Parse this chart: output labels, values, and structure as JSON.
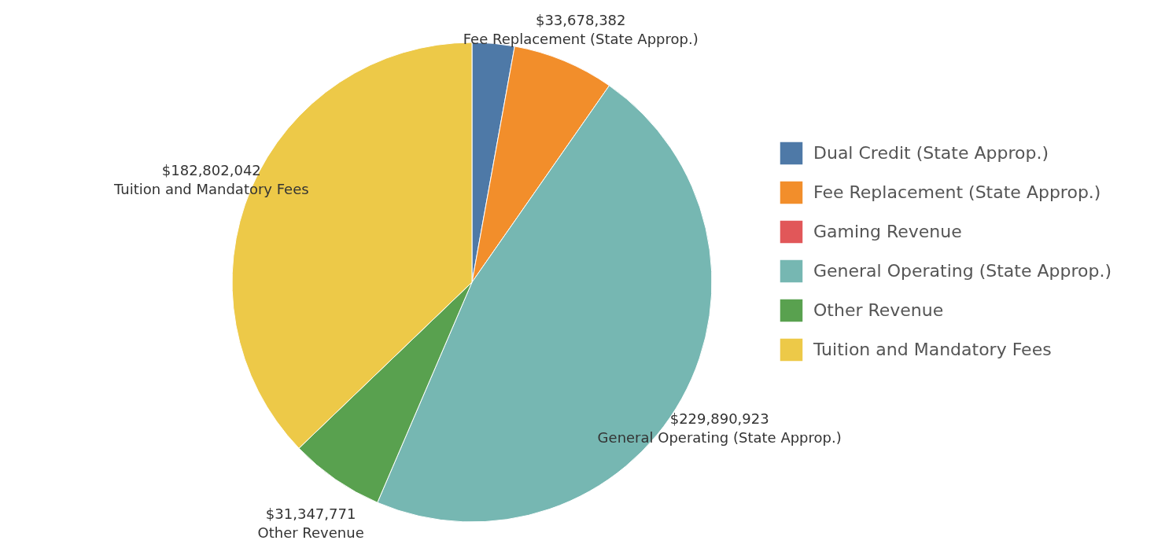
{
  "chart_data": {
    "type": "pie",
    "categories": [
      "Dual Credit (State Approp.)",
      "Fee Replacement (State Approp.)",
      "Gaming Revenue",
      "General Operating (State Approp.)",
      "Other Revenue",
      "Tuition and Mandatory Fees"
    ],
    "values": [
      14000000,
      33678382,
      null,
      229890923,
      31347771,
      182802042
    ],
    "colors": [
      "#4e79a7",
      "#f28e2b",
      "#e15759",
      "#76b7b2",
      "#59a14f",
      "#edc948"
    ],
    "value_labels": [
      null,
      "$33,678,382",
      null,
      "$229,890,923",
      "$31,347,771",
      "$182,802,042"
    ],
    "legend": "right"
  }
}
